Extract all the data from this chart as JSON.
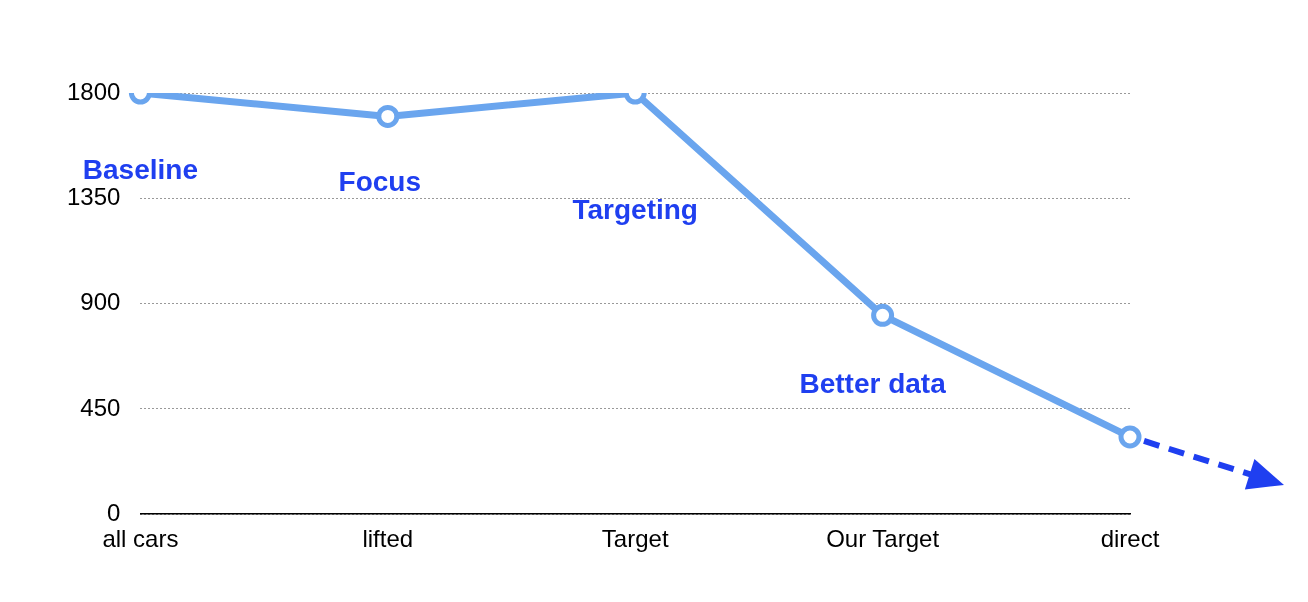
{
  "chart_data": {
    "type": "line",
    "categories": [
      "all cars",
      "lifted",
      "Target",
      "Our Target",
      "direct"
    ],
    "series": [
      {
        "color": "#6aa5ee",
        "values": [
          1800,
          1700,
          1800,
          850,
          330
        ]
      }
    ],
    "ylim": [
      0,
      1800
    ],
    "yticks": [
      0,
      450,
      900,
      1350,
      1800
    ],
    "grid": "y",
    "legend": false,
    "marker": "circle",
    "line_style": "solid",
    "annotations": [
      "Baseline",
      "Focus",
      "Targeting",
      "Better data"
    ]
  }
}
